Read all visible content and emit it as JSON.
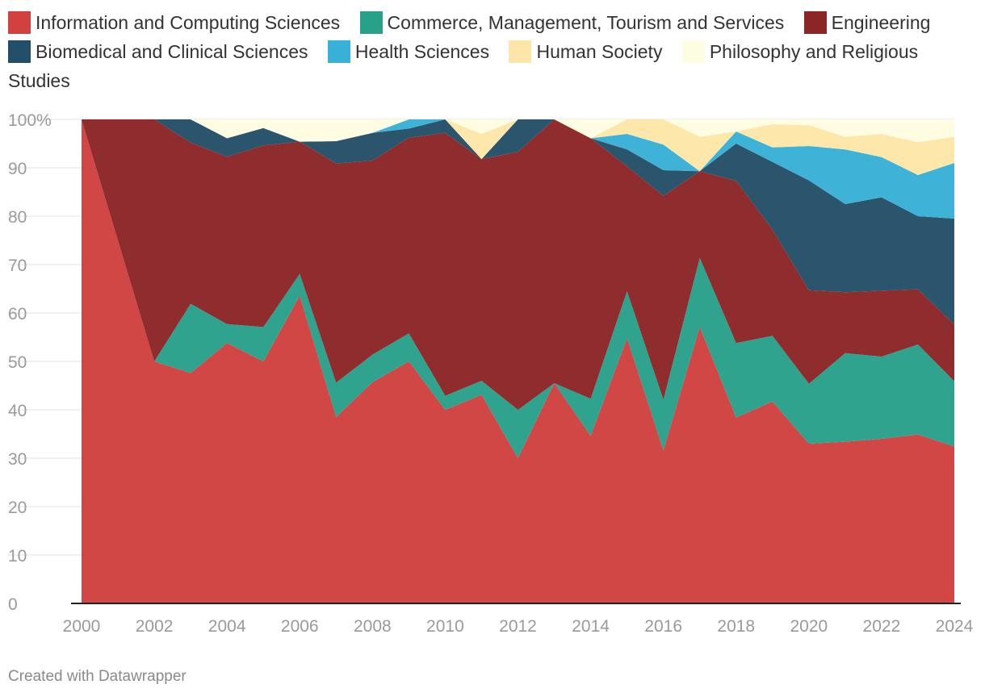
{
  "chart_data": {
    "type": "area",
    "stacked": true,
    "normalized": true,
    "x": [
      2000,
      2001,
      2002,
      2003,
      2004,
      2005,
      2006,
      2007,
      2008,
      2009,
      2010,
      2011,
      2012,
      2013,
      2014,
      2015,
      2016,
      2017,
      2018,
      2019,
      2020,
      2021,
      2022,
      2023,
      2024
    ],
    "series": [
      {
        "name": "Information and Computing Sciences",
        "color": "#d04140",
        "values": [
          100,
          75,
          50,
          47.6,
          53.8,
          50,
          63.6,
          38.5,
          45.7,
          50,
          40,
          43.1,
          30,
          45.5,
          34.6,
          54.8,
          31.6,
          57.1,
          38.4,
          41.7,
          33,
          33.4,
          34,
          34.9,
          32.4
        ]
      },
      {
        "name": "Commerce, Management, Tourism and Services",
        "color": "#28a08a",
        "values": [
          0,
          0,
          0,
          14.3,
          3.9,
          7.1,
          4.5,
          7.1,
          5.7,
          5.8,
          2.9,
          2.9,
          10,
          0,
          7.7,
          9.7,
          10.5,
          14.3,
          15.4,
          13.6,
          12.4,
          18.3,
          17,
          18.6,
          13.5
        ]
      },
      {
        "name": "Engineering",
        "color": "#8b2526",
        "values": [
          0,
          25,
          50,
          33.3,
          34.6,
          37.5,
          27.3,
          45.3,
          40.1,
          40.4,
          54.3,
          45.8,
          53.3,
          54.5,
          53.8,
          25.8,
          42.1,
          17.9,
          33.5,
          21.9,
          19.3,
          12.6,
          13.6,
          11.4,
          11.7
        ]
      },
      {
        "name": "Biomedical and Clinical Sciences",
        "color": "#244f68",
        "values": [
          0,
          0,
          0,
          4.8,
          3.8,
          3.6,
          0,
          4.6,
          5.7,
          1.9,
          2.8,
          0,
          6.7,
          0,
          0,
          3.5,
          5.3,
          0,
          7.7,
          14,
          22.7,
          18.2,
          19.3,
          15.1,
          21.9
        ]
      },
      {
        "name": "Health Sciences",
        "color": "#39b0d6",
        "values": [
          0,
          0,
          0,
          0,
          0,
          0,
          0,
          0,
          0,
          1.9,
          0,
          0,
          0,
          0,
          0,
          3.2,
          5.3,
          0,
          2.5,
          3,
          7.1,
          11.3,
          8.3,
          8.5,
          11.5
        ]
      },
      {
        "name": "Human Society",
        "color": "#fde6a8",
        "values": [
          0,
          0,
          0,
          0,
          0,
          0,
          0,
          0,
          0,
          0,
          0,
          5.2,
          0,
          0,
          0,
          3.2,
          5.2,
          7.1,
          0,
          4.8,
          4.3,
          2.6,
          4.8,
          6.8,
          5.4
        ]
      },
      {
        "name": "Philosophy and Religious Studies",
        "color": "#fefde1",
        "values": [
          0,
          0,
          0,
          0,
          3.9,
          1.8,
          4.6,
          4.5,
          2.8,
          0,
          0,
          3,
          0,
          0,
          3.9,
          0,
          0,
          3.6,
          2.5,
          1,
          1.2,
          3.6,
          3,
          4.7,
          3.6
        ]
      }
    ],
    "ylim": [
      0,
      100
    ],
    "xlim": [
      2000,
      2024
    ],
    "x_ticks": [
      "2000",
      "2002",
      "2004",
      "2006",
      "2008",
      "2010",
      "2012",
      "2014",
      "2016",
      "2018",
      "2020",
      "2022",
      "2024"
    ],
    "y_ticks": [
      "0",
      "10",
      "20",
      "30",
      "40",
      "50",
      "60",
      "70",
      "80",
      "90",
      "100%"
    ],
    "grid": true,
    "legend_position": "top",
    "title": "",
    "xlabel": "",
    "ylabel": ""
  },
  "footer": {
    "credit": "Created with Datawrapper"
  }
}
